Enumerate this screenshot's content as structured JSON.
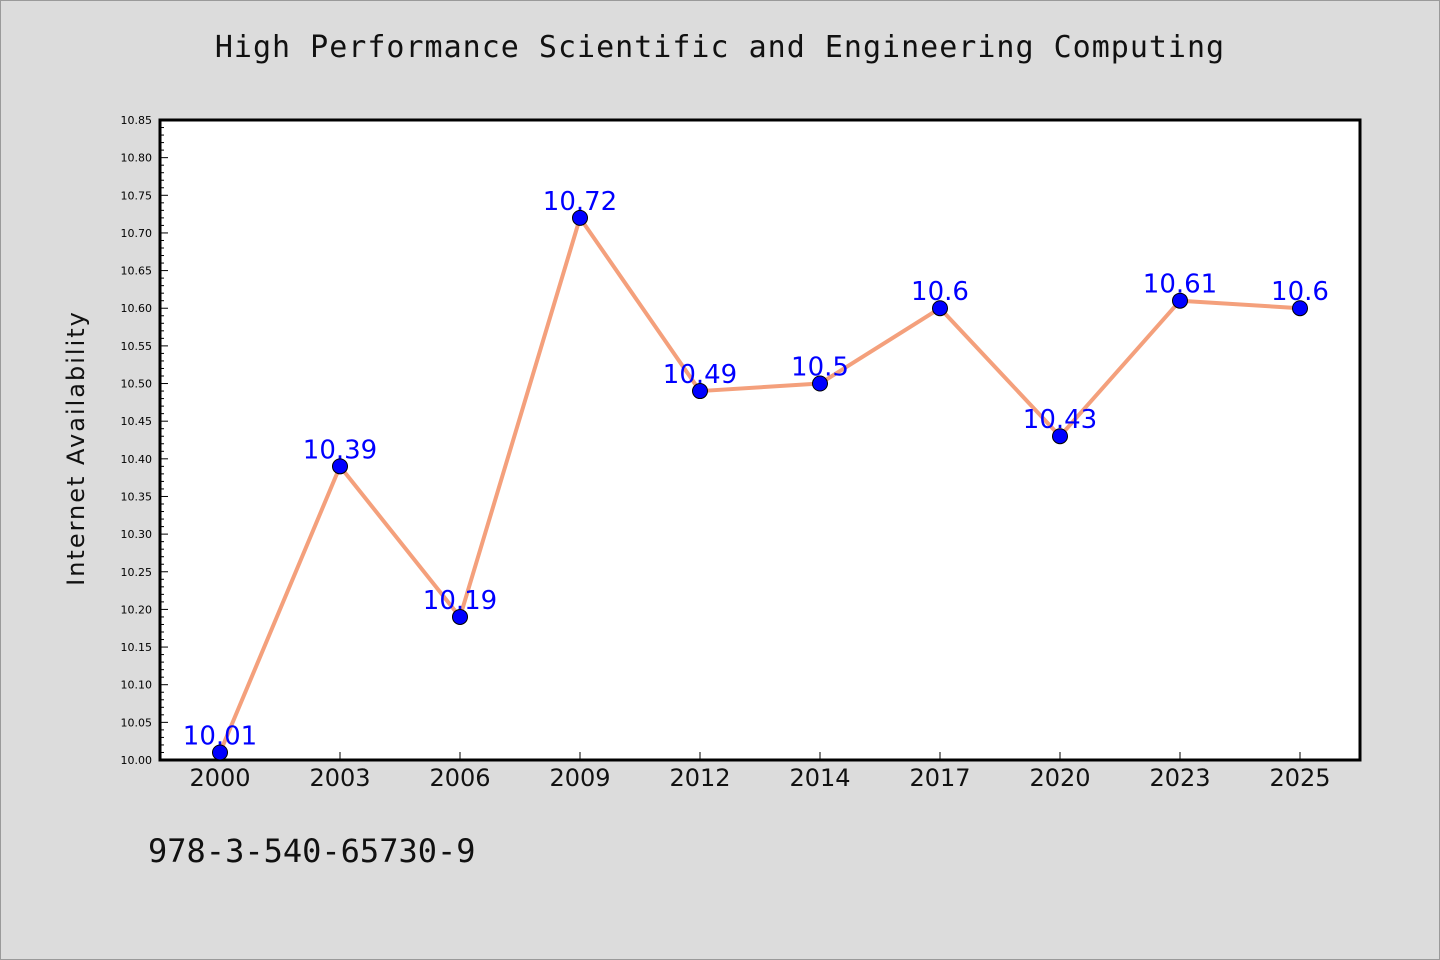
{
  "chart_data": {
    "type": "line",
    "title": "High Performance Scientific and Engineering Computing",
    "ylabel": "Internet Availability",
    "xlabel": "",
    "categories": [
      "2000",
      "2003",
      "2006",
      "2009",
      "2012",
      "2014",
      "2017",
      "2020",
      "2023",
      "2025"
    ],
    "values": [
      10.01,
      10.39,
      10.19,
      10.72,
      10.49,
      10.5,
      10.6,
      10.43,
      10.61,
      10.6
    ],
    "data_labels": [
      "10.01",
      "10.39",
      "10.19",
      "10.72",
      "10.49",
      "10.5",
      "10.6",
      "10.43",
      "10.61",
      "10.6"
    ],
    "ylim": [
      10.0,
      10.85
    ],
    "yticks": [
      "10.00",
      "10.05",
      "10.10",
      "10.15",
      "10.20",
      "10.25",
      "10.30",
      "10.35",
      "10.40",
      "10.45",
      "10.50",
      "10.55",
      "10.60",
      "10.65",
      "10.70",
      "10.75",
      "10.80",
      "10.85"
    ],
    "grid": false,
    "colors": {
      "line": "#f4a07c",
      "marker": "#0000ff",
      "label": "#0000ff",
      "background": "#dcdcdc",
      "plot_background": "#ffffff"
    }
  },
  "footer": {
    "code": "978-3-540-65730-9"
  }
}
